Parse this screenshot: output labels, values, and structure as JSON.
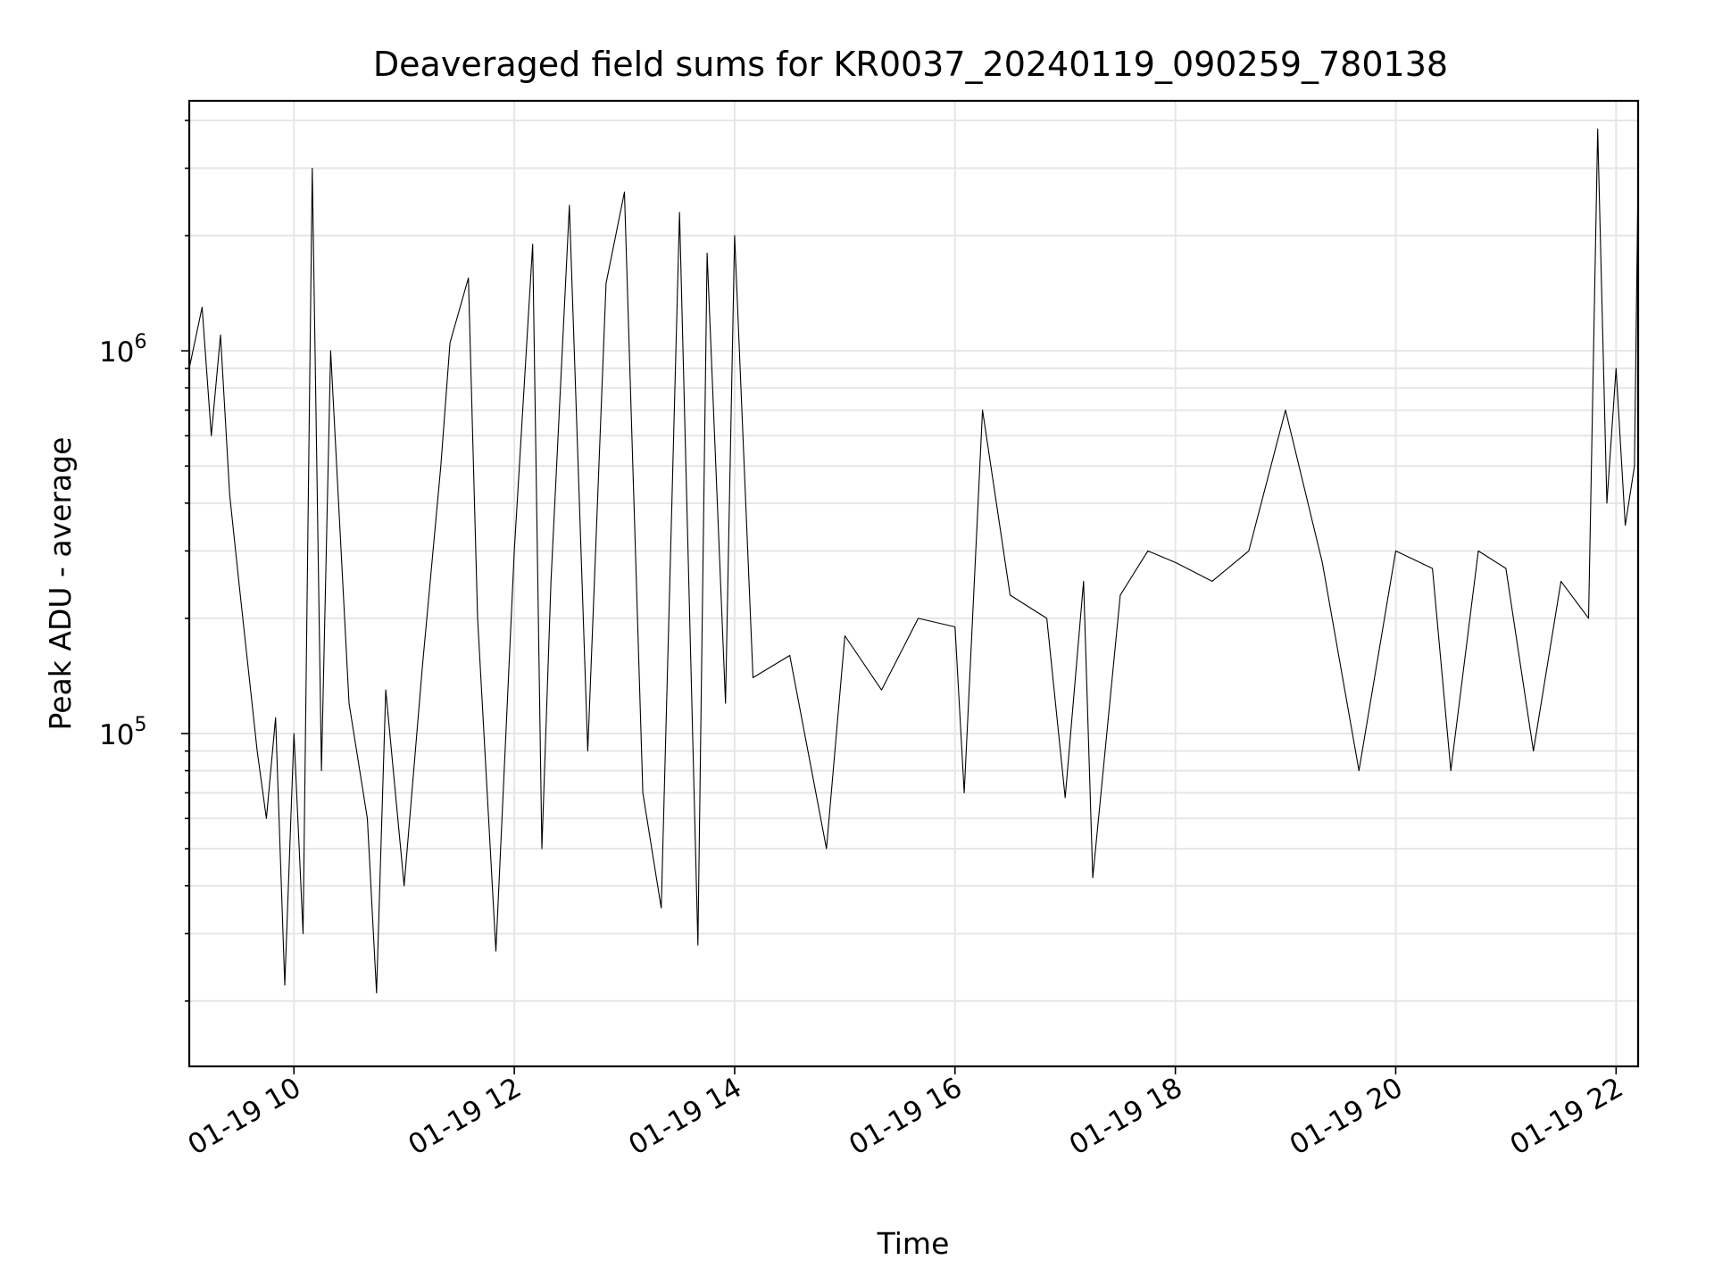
{
  "chart_data": {
    "type": "line",
    "title": "Deaveraged field sums for KR0037_20240119_090259_780138",
    "xlabel": "Time",
    "ylabel": "Peak ADU - average",
    "x_range": [
      "2024-01-19 09:03",
      "2024-01-19 22:12"
    ],
    "x_ticks": [
      "01-19 10",
      "01-19 12",
      "01-19 14",
      "01-19 16",
      "01-19 18",
      "01-19 20",
      "01-19 22"
    ],
    "y_scale": "log",
    "ylim": [
      13500,
      4500000
    ],
    "y_ticks": [
      {
        "base": "10",
        "exp": "5",
        "value": 100000
      },
      {
        "base": "10",
        "exp": "6",
        "value": 1000000
      }
    ],
    "grid": true,
    "legend": "none",
    "line_color": "#000000",
    "grid_color": "#e6e6e6",
    "series": [
      {
        "points": [
          [
            "2024-01-19 09:03",
            900000
          ],
          [
            "2024-01-19 09:10",
            1300000
          ],
          [
            "2024-01-19 09:15",
            600000
          ],
          [
            "2024-01-19 09:20",
            1100000
          ],
          [
            "2024-01-19 09:25",
            420000
          ],
          [
            "2024-01-19 09:30",
            250000
          ],
          [
            "2024-01-19 09:35",
            150000
          ],
          [
            "2024-01-19 09:40",
            90000
          ],
          [
            "2024-01-19 09:45",
            60000
          ],
          [
            "2024-01-19 09:50",
            110000
          ],
          [
            "2024-01-19 09:55",
            22000
          ],
          [
            "2024-01-19 10:00",
            100000
          ],
          [
            "2024-01-19 10:05",
            30000
          ],
          [
            "2024-01-19 10:10",
            3000000
          ],
          [
            "2024-01-19 10:15",
            80000
          ],
          [
            "2024-01-19 10:20",
            1000000
          ],
          [
            "2024-01-19 10:30",
            120000
          ],
          [
            "2024-01-19 10:40",
            60000
          ],
          [
            "2024-01-19 10:45",
            21000
          ],
          [
            "2024-01-19 10:50",
            130000
          ],
          [
            "2024-01-19 11:00",
            40000
          ],
          [
            "2024-01-19 11:10",
            150000
          ],
          [
            "2024-01-19 11:20",
            500000
          ],
          [
            "2024-01-19 11:25",
            1050000
          ],
          [
            "2024-01-19 11:35",
            1550000
          ],
          [
            "2024-01-19 11:40",
            200000
          ],
          [
            "2024-01-19 11:50",
            27000
          ],
          [
            "2024-01-19 12:00",
            300000
          ],
          [
            "2024-01-19 12:10",
            1900000
          ],
          [
            "2024-01-19 12:15",
            50000
          ],
          [
            "2024-01-19 12:20",
            250000
          ],
          [
            "2024-01-19 12:30",
            2400000
          ],
          [
            "2024-01-19 12:40",
            90000
          ],
          [
            "2024-01-19 12:50",
            1500000
          ],
          [
            "2024-01-19 13:00",
            2600000
          ],
          [
            "2024-01-19 13:10",
            70000
          ],
          [
            "2024-01-19 13:20",
            35000
          ],
          [
            "2024-01-19 13:30",
            2300000
          ],
          [
            "2024-01-19 13:40",
            28000
          ],
          [
            "2024-01-19 13:45",
            1800000
          ],
          [
            "2024-01-19 13:55",
            120000
          ],
          [
            "2024-01-19 14:00",
            2000000
          ],
          [
            "2024-01-19 14:10",
            140000
          ],
          [
            "2024-01-19 14:30",
            160000
          ],
          [
            "2024-01-19 14:50",
            50000
          ],
          [
            "2024-01-19 15:00",
            180000
          ],
          [
            "2024-01-19 15:20",
            130000
          ],
          [
            "2024-01-19 15:40",
            200000
          ],
          [
            "2024-01-19 16:00",
            190000
          ],
          [
            "2024-01-19 16:05",
            70000
          ],
          [
            "2024-01-19 16:15",
            700000
          ],
          [
            "2024-01-19 16:30",
            230000
          ],
          [
            "2024-01-19 16:50",
            200000
          ],
          [
            "2024-01-19 17:00",
            68000
          ],
          [
            "2024-01-19 17:10",
            250000
          ],
          [
            "2024-01-19 17:15",
            42000
          ],
          [
            "2024-01-19 17:30",
            230000
          ],
          [
            "2024-01-19 17:45",
            300000
          ],
          [
            "2024-01-19 18:00",
            280000
          ],
          [
            "2024-01-19 18:20",
            250000
          ],
          [
            "2024-01-19 18:40",
            300000
          ],
          [
            "2024-01-19 19:00",
            700000
          ],
          [
            "2024-01-19 19:20",
            280000
          ],
          [
            "2024-01-19 19:40",
            80000
          ],
          [
            "2024-01-19 20:00",
            300000
          ],
          [
            "2024-01-19 20:20",
            270000
          ],
          [
            "2024-01-19 20:30",
            80000
          ],
          [
            "2024-01-19 20:45",
            300000
          ],
          [
            "2024-01-19 21:00",
            270000
          ],
          [
            "2024-01-19 21:15",
            90000
          ],
          [
            "2024-01-19 21:30",
            250000
          ],
          [
            "2024-01-19 21:45",
            200000
          ],
          [
            "2024-01-19 21:50",
            3800000
          ],
          [
            "2024-01-19 21:55",
            400000
          ],
          [
            "2024-01-19 22:00",
            900000
          ],
          [
            "2024-01-19 22:05",
            350000
          ],
          [
            "2024-01-19 22:10",
            500000
          ],
          [
            "2024-01-19 22:12",
            2900000
          ]
        ]
      }
    ]
  }
}
